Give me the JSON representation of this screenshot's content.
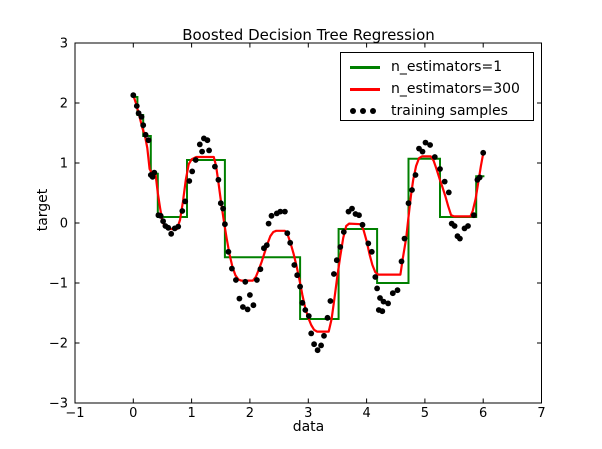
{
  "figure": {
    "background": "#ffffff",
    "frame_color": "#000000",
    "tick_color": "#000000"
  },
  "chart_data": {
    "type": "line",
    "title": "Boosted Decision Tree Regression",
    "xlabel": "data",
    "ylabel": "target",
    "xlim": [
      -1,
      7
    ],
    "ylim": [
      -3,
      3
    ],
    "xticks": [
      -1,
      0,
      1,
      2,
      3,
      4,
      5,
      6,
      7
    ],
    "yticks": [
      -3,
      -2,
      -1,
      0,
      1,
      2,
      3
    ],
    "grid": false,
    "legend": {
      "position": "upper right",
      "entries": [
        "n_estimators=1",
        "n_estimators=300",
        "training samples"
      ]
    },
    "series": [
      {
        "name": "n_estimators=1",
        "type": "step",
        "color": "#008000",
        "line_width": 2,
        "steps": [
          [
            0.0,
            0.07,
            2.1
          ],
          [
            0.07,
            0.17,
            1.8
          ],
          [
            0.17,
            0.3,
            1.45
          ],
          [
            0.3,
            0.42,
            0.82
          ],
          [
            0.42,
            0.92,
            0.1
          ],
          [
            0.92,
            1.57,
            1.05
          ],
          [
            1.57,
            2.86,
            -0.57
          ],
          [
            2.86,
            3.52,
            -1.6
          ],
          [
            3.52,
            4.18,
            -0.1
          ],
          [
            4.18,
            4.72,
            -1.0
          ],
          [
            4.72,
            5.26,
            1.07
          ],
          [
            5.26,
            5.88,
            0.1
          ],
          [
            5.88,
            6.02,
            0.78
          ]
        ]
      },
      {
        "name": "n_estimators=300",
        "type": "line",
        "color": "#ff0000",
        "line_width": 2.2,
        "points": [
          [
            0.0,
            2.13
          ],
          [
            0.05,
            1.98
          ],
          [
            0.1,
            1.8
          ],
          [
            0.15,
            1.6
          ],
          [
            0.2,
            1.45
          ],
          [
            0.24,
            1.25
          ],
          [
            0.28,
            0.9
          ],
          [
            0.32,
            0.83
          ],
          [
            0.38,
            0.82
          ],
          [
            0.42,
            0.5
          ],
          [
            0.46,
            0.25
          ],
          [
            0.5,
            0.02
          ],
          [
            0.55,
            -0.07
          ],
          [
            0.6,
            -0.1
          ],
          [
            0.75,
            -0.1
          ],
          [
            0.8,
            0.05
          ],
          [
            0.85,
            0.35
          ],
          [
            0.9,
            0.72
          ],
          [
            0.95,
            0.98
          ],
          [
            1.0,
            1.06
          ],
          [
            1.08,
            1.1
          ],
          [
            1.38,
            1.1
          ],
          [
            1.42,
            0.95
          ],
          [
            1.46,
            0.68
          ],
          [
            1.5,
            0.38
          ],
          [
            1.55,
            0.05
          ],
          [
            1.6,
            -0.25
          ],
          [
            1.65,
            -0.52
          ],
          [
            1.7,
            -0.73
          ],
          [
            1.75,
            -0.87
          ],
          [
            1.8,
            -0.94
          ],
          [
            1.85,
            -0.96
          ],
          [
            2.05,
            -0.96
          ],
          [
            2.1,
            -0.9
          ],
          [
            2.15,
            -0.78
          ],
          [
            2.2,
            -0.65
          ],
          [
            2.25,
            -0.5
          ],
          [
            2.3,
            -0.35
          ],
          [
            2.35,
            -0.22
          ],
          [
            2.4,
            -0.15
          ],
          [
            2.45,
            -0.13
          ],
          [
            2.6,
            -0.13
          ],
          [
            2.65,
            -0.2
          ],
          [
            2.7,
            -0.35
          ],
          [
            2.75,
            -0.52
          ],
          [
            2.8,
            -0.72
          ],
          [
            2.85,
            -0.95
          ],
          [
            2.9,
            -1.2
          ],
          [
            2.95,
            -1.42
          ],
          [
            3.0,
            -1.58
          ],
          [
            3.05,
            -1.7
          ],
          [
            3.1,
            -1.78
          ],
          [
            3.15,
            -1.81
          ],
          [
            3.35,
            -1.81
          ],
          [
            3.4,
            -1.6
          ],
          [
            3.45,
            -1.25
          ],
          [
            3.5,
            -0.88
          ],
          [
            3.55,
            -0.55
          ],
          [
            3.6,
            -0.25
          ],
          [
            3.65,
            -0.05
          ],
          [
            3.7,
            -0.01
          ],
          [
            3.9,
            -0.02
          ],
          [
            3.95,
            -0.12
          ],
          [
            4.0,
            -0.3
          ],
          [
            4.05,
            -0.52
          ],
          [
            4.1,
            -0.7
          ],
          [
            4.15,
            -0.82
          ],
          [
            4.2,
            -0.86
          ],
          [
            4.58,
            -0.86
          ],
          [
            4.62,
            -0.6
          ],
          [
            4.68,
            -0.25
          ],
          [
            4.72,
            0.1
          ],
          [
            4.76,
            0.45
          ],
          [
            4.8,
            0.72
          ],
          [
            4.85,
            0.95
          ],
          [
            4.9,
            1.08
          ],
          [
            4.95,
            1.11
          ],
          [
            5.1,
            1.11
          ],
          [
            5.15,
            1.04
          ],
          [
            5.2,
            0.9
          ],
          [
            5.25,
            0.74
          ],
          [
            5.3,
            0.6
          ],
          [
            5.35,
            0.45
          ],
          [
            5.4,
            0.28
          ],
          [
            5.45,
            0.13
          ],
          [
            5.5,
            0.11
          ],
          [
            5.78,
            0.11
          ],
          [
            5.82,
            0.2
          ],
          [
            5.87,
            0.4
          ],
          [
            5.92,
            0.7
          ],
          [
            5.96,
            0.95
          ],
          [
            6.0,
            1.16
          ]
        ]
      },
      {
        "name": "training samples",
        "type": "scatter",
        "color": "#000000",
        "marker": "circle",
        "marker_radius": 2.9,
        "points": [
          [
            0.0,
            2.13
          ],
          [
            0.06,
            1.95
          ],
          [
            0.09,
            1.83
          ],
          [
            0.14,
            1.77
          ],
          [
            0.17,
            1.63
          ],
          [
            0.21,
            1.47
          ],
          [
            0.26,
            1.38
          ],
          [
            0.3,
            0.8
          ],
          [
            0.33,
            0.77
          ],
          [
            0.36,
            0.84
          ],
          [
            0.43,
            0.13
          ],
          [
            0.47,
            0.12
          ],
          [
            0.51,
            0.03
          ],
          [
            0.55,
            -0.05
          ],
          [
            0.6,
            -0.08
          ],
          [
            0.65,
            -0.18
          ],
          [
            0.71,
            -0.09
          ],
          [
            0.77,
            -0.06
          ],
          [
            0.84,
            0.2
          ],
          [
            0.89,
            0.36
          ],
          [
            0.96,
            0.7
          ],
          [
            1.01,
            0.86
          ],
          [
            1.07,
            1.05
          ],
          [
            1.14,
            1.31
          ],
          [
            1.18,
            1.19
          ],
          [
            1.21,
            1.41
          ],
          [
            1.27,
            1.38
          ],
          [
            1.3,
            1.21
          ],
          [
            1.4,
            0.94
          ],
          [
            1.46,
            0.72
          ],
          [
            1.5,
            0.33
          ],
          [
            1.54,
            0.24
          ],
          [
            1.57,
            -0.02
          ],
          [
            1.63,
            -0.48
          ],
          [
            1.69,
            -0.76
          ],
          [
            1.76,
            -0.95
          ],
          [
            1.82,
            -1.26
          ],
          [
            1.88,
            -1.4
          ],
          [
            1.92,
            -0.98
          ],
          [
            1.96,
            -1.44
          ],
          [
            2.0,
            -1.2
          ],
          [
            2.06,
            -1.37
          ],
          [
            2.12,
            -0.95
          ],
          [
            2.18,
            -0.77
          ],
          [
            2.24,
            -0.42
          ],
          [
            2.29,
            -0.37
          ],
          [
            2.32,
            -0.01
          ],
          [
            2.37,
            0.12
          ],
          [
            2.46,
            0.16
          ],
          [
            2.52,
            0.19
          ],
          [
            2.6,
            0.19
          ],
          [
            2.64,
            -0.17
          ],
          [
            2.69,
            -0.33
          ],
          [
            2.76,
            -0.7
          ],
          [
            2.81,
            -0.87
          ],
          [
            2.86,
            -1.06
          ],
          [
            2.9,
            -1.33
          ],
          [
            2.95,
            -1.45
          ],
          [
            3.01,
            -1.55
          ],
          [
            3.05,
            -1.84
          ],
          [
            3.1,
            -2.02
          ],
          [
            3.16,
            -2.12
          ],
          [
            3.22,
            -2.04
          ],
          [
            3.27,
            -1.88
          ],
          [
            3.33,
            -1.58
          ],
          [
            3.38,
            -1.3
          ],
          [
            3.44,
            -0.85
          ],
          [
            3.49,
            -0.62
          ],
          [
            3.55,
            -0.4
          ],
          [
            3.61,
            -0.15
          ],
          [
            3.69,
            0.19
          ],
          [
            3.75,
            0.24
          ],
          [
            3.81,
            0.15
          ],
          [
            3.87,
            0.13
          ],
          [
            3.93,
            -0.03
          ],
          [
            4.03,
            -0.34
          ],
          [
            4.09,
            -0.48
          ],
          [
            4.15,
            -0.9
          ],
          [
            4.18,
            -1.09
          ],
          [
            4.21,
            -1.45
          ],
          [
            4.23,
            -1.25
          ],
          [
            4.27,
            -1.47
          ],
          [
            4.29,
            -1.31
          ],
          [
            4.37,
            -1.34
          ],
          [
            4.45,
            -1.17
          ],
          [
            4.53,
            -1.12
          ],
          [
            4.6,
            -0.64
          ],
          [
            4.65,
            -0.26
          ],
          [
            4.72,
            0.33
          ],
          [
            4.78,
            0.55
          ],
          [
            4.84,
            0.8
          ],
          [
            4.9,
            1.24
          ],
          [
            4.96,
            1.19
          ],
          [
            5.01,
            1.34
          ],
          [
            5.09,
            1.3
          ],
          [
            5.17,
            1.1
          ],
          [
            5.26,
            0.9
          ],
          [
            5.34,
            0.69
          ],
          [
            5.41,
            0.51
          ],
          [
            5.46,
            -0.01
          ],
          [
            5.51,
            -0.05
          ],
          [
            5.56,
            -0.22
          ],
          [
            5.6,
            -0.26
          ],
          [
            5.68,
            -0.09
          ],
          [
            5.74,
            -0.05
          ],
          [
            5.84,
            0.13
          ],
          [
            5.9,
            0.72
          ],
          [
            5.94,
            0.76
          ],
          [
            6.0,
            1.17
          ]
        ]
      }
    ]
  }
}
